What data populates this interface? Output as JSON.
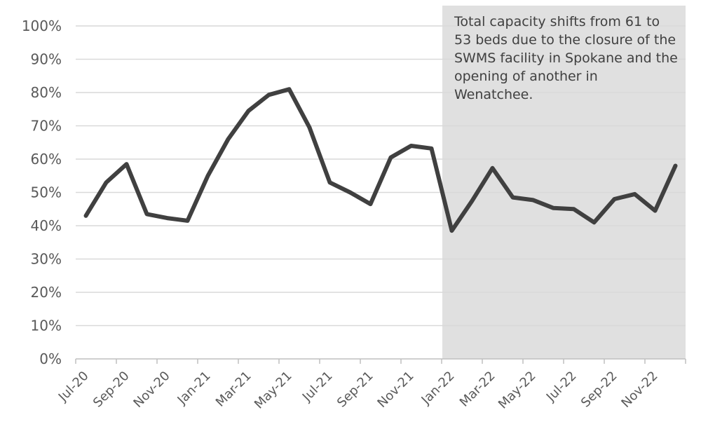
{
  "chart_data": {
    "type": "line",
    "title": "",
    "xlabel": "",
    "ylabel": "",
    "ylim": [
      0,
      100
    ],
    "y_ticks": [
      "0%",
      "10%",
      "20%",
      "30%",
      "40%",
      "50%",
      "60%",
      "70%",
      "80%",
      "90%",
      "100%"
    ],
    "x_tick_labels": [
      "Jul-20",
      "Sep-20",
      "Nov-20",
      "Jan-21",
      "Mar-21",
      "May-21",
      "Jul-21",
      "Sep-21",
      "Nov-21",
      "Jan-22",
      "Mar-22",
      "May-22",
      "Jul-22",
      "Sep-22",
      "Nov-22"
    ],
    "categories": [
      "Jul-20",
      "Aug-20",
      "Sep-20",
      "Oct-20",
      "Nov-20",
      "Dec-20",
      "Jan-21",
      "Feb-21",
      "Mar-21",
      "Apr-21",
      "May-21",
      "Jun-21",
      "Jul-21",
      "Aug-21",
      "Sep-21",
      "Oct-21",
      "Nov-21",
      "Dec-21",
      "Jan-22",
      "Feb-22",
      "Mar-22",
      "Apr-22",
      "May-22",
      "Jun-22",
      "Jul-22",
      "Aug-22",
      "Sep-22",
      "Oct-22",
      "Nov-22",
      "Dec-22"
    ],
    "series": [
      {
        "values": [
          43,
          53,
          58.5,
          43.5,
          42.3,
          41.5,
          55,
          66,
          74.5,
          79.3,
          81,
          69.5,
          53,
          50,
          46.5,
          60.5,
          64,
          63.2,
          38.5,
          47.5,
          57.3,
          48.5,
          47.7,
          45.3,
          45,
          41,
          48,
          49.5,
          44.5,
          58
        ],
        "color": "#404040"
      }
    ],
    "shaded_region": {
      "from": "Jan-22",
      "to": "Dec-22",
      "color": "#e0e0e0"
    },
    "annotation": "Total capacity shifts from 61 to 53 beds due to the closure of the SWMS facility in Spokane and the opening of another in Wenatchee.",
    "grid": true,
    "legend": "none"
  }
}
